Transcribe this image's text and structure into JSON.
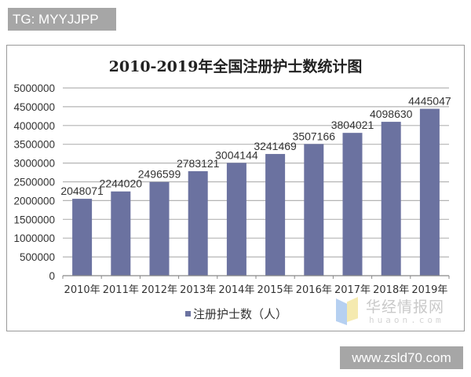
{
  "badges": {
    "top_left": "TG: MYYJJPP",
    "bottom_right": "www.zsld70.com"
  },
  "watermark": {
    "cn": "华经情报网",
    "en": "huaon.com"
  },
  "colors": {
    "bar": "#6b72a0",
    "grid": "#b4b4b4",
    "frame": "#9a9a9a",
    "badge_bg": "#a6a6a6"
  },
  "chart_data": {
    "type": "bar",
    "title": "2010-2019年全国注册护士数统计图",
    "xlabel": "",
    "ylabel": "",
    "categories": [
      "2010年",
      "2011年",
      "2012年",
      "2013年",
      "2014年",
      "2015年",
      "2016年",
      "2017年",
      "2018年",
      "2019年"
    ],
    "series": [
      {
        "name": "注册护士数（人）",
        "values": [
          2048071,
          2244020,
          2496599,
          2783121,
          3004144,
          3241469,
          3507166,
          3804021,
          4098630,
          4445047
        ]
      }
    ],
    "data_labels": [
      "2048071",
      "2244020",
      "2496599",
      "2783121",
      "3004144",
      "3241469",
      "3507166",
      "3804021",
      "4098630",
      "4445047"
    ],
    "yticks": [
      0,
      500000,
      1000000,
      1500000,
      2000000,
      2500000,
      3000000,
      3500000,
      4000000,
      4500000,
      5000000
    ],
    "ytick_labels": [
      "0",
      "500000",
      "1000000",
      "1500000",
      "2000000",
      "2500000",
      "3000000",
      "3500000",
      "4000000",
      "4500000",
      "5000000"
    ],
    "ylim": [
      0,
      5000000
    ],
    "grid": true,
    "legend_position": "bottom"
  }
}
